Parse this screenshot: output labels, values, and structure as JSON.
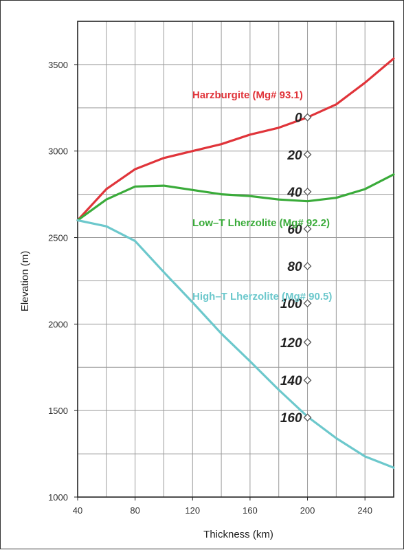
{
  "chart_data": {
    "type": "line",
    "title": "",
    "xlabel": "Thickness (km)",
    "ylabel": "Elevation (m)",
    "xlim": [
      40,
      260
    ],
    "ylim": [
      1000,
      3750
    ],
    "x_ticks": [
      40,
      80,
      120,
      160,
      200,
      240
    ],
    "y_ticks": [
      1000,
      1500,
      2000,
      2500,
      3000,
      3500
    ],
    "grid": true,
    "series": [
      {
        "name": "Harzburgite (Mg# 93.1)",
        "color": "#e0343a",
        "x": [
          40,
          60,
          80,
          100,
          120,
          140,
          160,
          180,
          200,
          220,
          240,
          260
        ],
        "y": [
          2600,
          2780,
          2895,
          2960,
          3000,
          3040,
          3095,
          3135,
          3195,
          3270,
          3395,
          3535
        ]
      },
      {
        "name": "Low–T Lherzolite (Mg# 92.2)",
        "color": "#3aab3a",
        "x": [
          40,
          60,
          80,
          100,
          120,
          140,
          160,
          180,
          200,
          220,
          240,
          260
        ],
        "y": [
          2600,
          2720,
          2795,
          2800,
          2775,
          2750,
          2740,
          2720,
          2710,
          2730,
          2780,
          2865
        ]
      },
      {
        "name": "High–T Lherzolite (Mg# 90.5)",
        "color": "#6cc8cc",
        "x": [
          40,
          60,
          80,
          100,
          120,
          140,
          160,
          180,
          200,
          220,
          240,
          260
        ],
        "y": [
          2600,
          2565,
          2480,
          2300,
          2125,
          1945,
          1785,
          1620,
          1465,
          1340,
          1235,
          1170
        ]
      }
    ],
    "annotations": {
      "x": 200,
      "points": [
        {
          "label": "0",
          "y": 3195
        },
        {
          "label": "20",
          "y": 2980
        },
        {
          "label": "40",
          "y": 2765
        },
        {
          "label": "60",
          "y": 2550
        },
        {
          "label": "80",
          "y": 2335
        },
        {
          "label": "100",
          "y": 2120
        },
        {
          "label": "120",
          "y": 1895
        },
        {
          "label": "140",
          "y": 1675
        },
        {
          "label": "160",
          "y": 1460
        }
      ]
    }
  }
}
